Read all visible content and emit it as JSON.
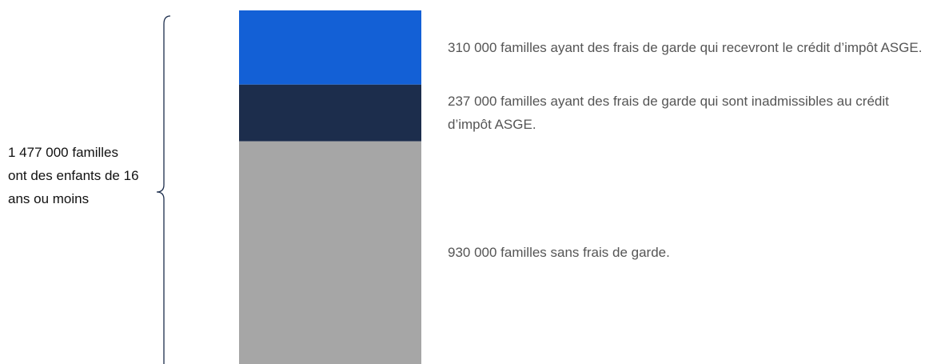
{
  "chart_data": {
    "type": "stacked-bar",
    "annotation": "1 477 000 familles ont des enfants de 16 ans ou moins",
    "series": [
      {
        "name": "310 000 familles ayant des frais de garde qui recevront le crédit d’impôt ASGE.",
        "color": "#1360d6",
        "values": [
          310000
        ]
      },
      {
        "name": "237 000 familles ayant des frais de garde qui sont inadmissibles au crédit d’impôt ASGE.",
        "color": "#1c2d4c",
        "values": [
          237000
        ]
      },
      {
        "name": "930 000 familles sans frais de garde.",
        "color": "#a6a6a6",
        "values": [
          930000
        ]
      }
    ]
  }
}
